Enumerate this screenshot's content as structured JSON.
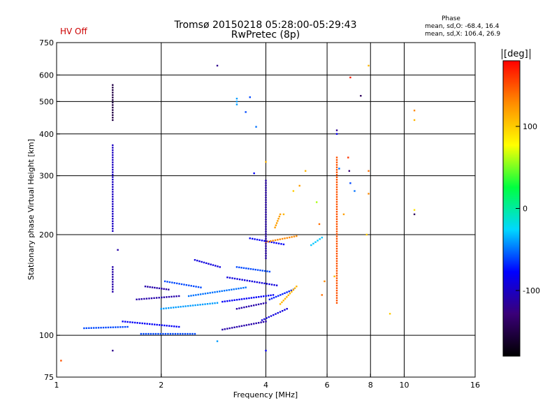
{
  "header": {
    "title_line1": "Tromsø 20150218 05:28:00-05:29:43",
    "title_line2": "RwPretec (8p)",
    "hv_status": "HV Off",
    "hv_color": "#cc0000"
  },
  "phase_box": {
    "title": "Phase",
    "line_o": "mean, sd,O: -68.4, 16.4",
    "line_x": "mean, sd,X: 106.4, 26.9"
  },
  "colorbar": {
    "unit": "[deg]",
    "ticks": [
      "100",
      "0",
      "-100"
    ],
    "tick_values": [
      100,
      0,
      -100
    ],
    "range": [
      -180,
      180
    ],
    "colormap": [
      "#000000",
      "#3a0078",
      "#0000ff",
      "#00d8ff",
      "#00ff40",
      "#ffff00",
      "#ff8c00",
      "#ff0000"
    ]
  },
  "chart_data": {
    "type": "scatter",
    "xlabel": "Frequency [MHz]",
    "ylabel": "Stationary phase Virtual Height [km]",
    "x_scale": "log",
    "y_scale": "log",
    "xlim": [
      1,
      16
    ],
    "ylim": [
      75,
      750
    ],
    "xticks": [
      1,
      2,
      4,
      6,
      8,
      10,
      16
    ],
    "xtick_labels": [
      "1",
      "2",
      "4",
      "6",
      "8",
      "10",
      "16"
    ],
    "yticks": [
      75,
      100,
      200,
      300,
      400,
      500,
      600,
      750
    ],
    "ytick_labels": [
      "75",
      "100",
      "200",
      "300",
      "400",
      "500",
      "600",
      "750"
    ],
    "grid": true,
    "grid_x": [
      2,
      4,
      6,
      8,
      10
    ],
    "grid_y": [
      100,
      200,
      300,
      400,
      500,
      600
    ],
    "traces": [
      {
        "x": [
          1.2,
          1.6
        ],
        "y": [
          105,
          106
        ],
        "phase": -60
      },
      {
        "x": [
          1.55,
          2.25
        ],
        "y": [
          110,
          106
        ],
        "phase": -80
      },
      {
        "x": [
          1.75,
          2.5
        ],
        "y": [
          101,
          101
        ],
        "phase": -60
      },
      {
        "x": [
          1.7,
          2.25
        ],
        "y": [
          128,
          131
        ],
        "phase": -110
      },
      {
        "x": [
          1.8,
          2.1
        ],
        "y": [
          140,
          137
        ],
        "phase": -110
      },
      {
        "x": [
          2.0,
          2.9
        ],
        "y": [
          120,
          125
        ],
        "phase": -40
      },
      {
        "x": [
          2.05,
          2.6
        ],
        "y": [
          145,
          139
        ],
        "phase": -60
      },
      {
        "x": [
          2.4,
          3.5
        ],
        "y": [
          131,
          139
        ],
        "phase": -50
      },
      {
        "x": [
          2.5,
          2.95
        ],
        "y": [
          168,
          160
        ],
        "phase": -90
      },
      {
        "x": [
          3.0,
          4.0
        ],
        "y": [
          104,
          110
        ],
        "phase": -110
      },
      {
        "x": [
          3.0,
          4.2
        ],
        "y": [
          126,
          132
        ],
        "phase": -80
      },
      {
        "x": [
          3.1,
          4.3
        ],
        "y": [
          149,
          141
        ],
        "phase": -90
      },
      {
        "x": [
          3.3,
          4.0
        ],
        "y": [
          120,
          125
        ],
        "phase": -110
      },
      {
        "x": [
          3.3,
          4.1
        ],
        "y": [
          160,
          155
        ],
        "phase": -60
      },
      {
        "x": [
          3.9,
          4.6
        ],
        "y": [
          111,
          120
        ],
        "phase": -90
      },
      {
        "x": [
          4.1,
          4.8
        ],
        "y": [
          128,
          137
        ],
        "phase": -70
      },
      {
        "x": [
          3.6,
          4.5
        ],
        "y": [
          195,
          187
        ],
        "phase": -80
      },
      {
        "x": [
          4.0,
          4.9
        ],
        "y": [
          190,
          198
        ],
        "phase": 130
      },
      {
        "x": [
          4.4,
          4.9
        ],
        "y": [
          124,
          140
        ],
        "phase": 110
      },
      {
        "x": [
          5.4,
          5.8
        ],
        "y": [
          186,
          196
        ],
        "phase": -30
      },
      {
        "x": [
          1.45,
          1.45
        ],
        "y": [
          440,
          560
        ],
        "phase": -150
      },
      {
        "x": [
          1.45,
          1.45
        ],
        "y": [
          205,
          370
        ],
        "phase": -100
      },
      {
        "x": [
          1.45,
          1.45
        ],
        "y": [
          135,
          160
        ],
        "phase": -110
      },
      {
        "x": [
          3.3,
          3.3
        ],
        "y": [
          490,
          510
        ],
        "phase": -40
      },
      {
        "x": [
          6.4,
          6.4
        ],
        "y": [
          125,
          340
        ],
        "phase": 150
      },
      {
        "x": [
          4.0,
          4.0
        ],
        "y": [
          170,
          290
        ],
        "phase": -110
      },
      {
        "x": [
          4.25,
          4.4
        ],
        "y": [
          210,
          230
        ],
        "phase": 120
      }
    ],
    "points": [
      {
        "x": 1.03,
        "y": 84,
        "phase": 150
      },
      {
        "x": 1.45,
        "y": 90,
        "phase": -120
      },
      {
        "x": 1.5,
        "y": 180,
        "phase": -110
      },
      {
        "x": 2.9,
        "y": 96,
        "phase": -40
      },
      {
        "x": 2.9,
        "y": 640,
        "phase": -120
      },
      {
        "x": 3.5,
        "y": 465,
        "phase": -60
      },
      {
        "x": 3.6,
        "y": 515,
        "phase": -60
      },
      {
        "x": 3.75,
        "y": 420,
        "phase": -50
      },
      {
        "x": 3.7,
        "y": 305,
        "phase": -80
      },
      {
        "x": 4.0,
        "y": 330,
        "phase": 110
      },
      {
        "x": 4.5,
        "y": 230,
        "phase": 110
      },
      {
        "x": 4.8,
        "y": 270,
        "phase": 100
      },
      {
        "x": 5.0,
        "y": 280,
        "phase": 120
      },
      {
        "x": 5.2,
        "y": 310,
        "phase": 110
      },
      {
        "x": 5.6,
        "y": 250,
        "phase": 60
      },
      {
        "x": 5.7,
        "y": 215,
        "phase": 140
      },
      {
        "x": 6.4,
        "y": 410,
        "phase": -120
      },
      {
        "x": 6.4,
        "y": 400,
        "phase": -80
      },
      {
        "x": 6.5,
        "y": 315,
        "phase": -50
      },
      {
        "x": 6.7,
        "y": 230,
        "phase": 120
      },
      {
        "x": 6.9,
        "y": 340,
        "phase": 160
      },
      {
        "x": 6.95,
        "y": 310,
        "phase": -130
      },
      {
        "x": 7.0,
        "y": 590,
        "phase": 170
      },
      {
        "x": 7.0,
        "y": 285,
        "phase": -60
      },
      {
        "x": 7.2,
        "y": 270,
        "phase": -50
      },
      {
        "x": 7.5,
        "y": 520,
        "phase": -140
      },
      {
        "x": 7.9,
        "y": 640,
        "phase": 110
      },
      {
        "x": 7.9,
        "y": 310,
        "phase": 140
      },
      {
        "x": 7.9,
        "y": 265,
        "phase": 130
      },
      {
        "x": 7.8,
        "y": 200,
        "phase": 100
      },
      {
        "x": 9.1,
        "y": 116,
        "phase": 100
      },
      {
        "x": 10.7,
        "y": 470,
        "phase": 130
      },
      {
        "x": 10.7,
        "y": 440,
        "phase": 110
      },
      {
        "x": 10.7,
        "y": 237,
        "phase": 90
      },
      {
        "x": 10.7,
        "y": 230,
        "phase": -140
      },
      {
        "x": 5.8,
        "y": 132,
        "phase": 140
      },
      {
        "x": 5.9,
        "y": 145,
        "phase": 130
      },
      {
        "x": 6.3,
        "y": 150,
        "phase": 110
      },
      {
        "x": 4.0,
        "y": 90,
        "phase": -80
      }
    ],
    "color_scale": "phase, -180 to 180 deg"
  }
}
